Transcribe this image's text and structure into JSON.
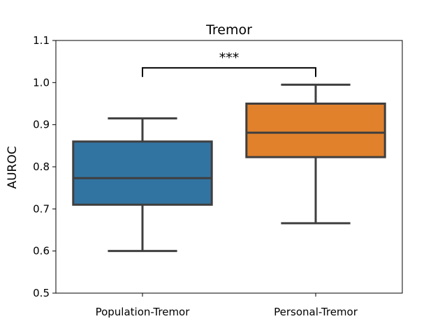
{
  "chart_data": {
    "type": "box",
    "title": "Tremor",
    "xlabel": "",
    "ylabel": "AUROC",
    "ylim": [
      0.5,
      1.1
    ],
    "yticks": [
      "0.5",
      "0.6",
      "0.7",
      "0.8",
      "0.9",
      "1.0",
      "1.1"
    ],
    "categories": [
      "Population-Tremor",
      "Personal-Tremor"
    ],
    "boxes": [
      {
        "category": "Population-Tremor",
        "whisker_low": 0.6,
        "q1": 0.71,
        "median": 0.773,
        "q3": 0.86,
        "whisker_high": 0.915,
        "color": "#3274a1"
      },
      {
        "category": "Personal-Tremor",
        "whisker_low": 0.666,
        "q1": 0.823,
        "median": 0.881,
        "q3": 0.95,
        "whisker_high": 0.995,
        "color": "#e1812c"
      }
    ],
    "significance": {
      "from": "Population-Tremor",
      "to": "Personal-Tremor",
      "label": "***",
      "y": 1.035
    },
    "grid": false,
    "line_color": "#3f3f3f"
  }
}
